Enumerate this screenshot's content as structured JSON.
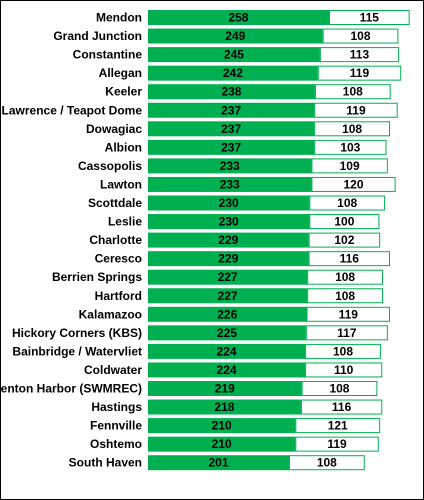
{
  "chart_data": {
    "type": "bar",
    "orientation": "horizontal",
    "stacked": true,
    "categories": [
      "Mendon",
      "Grand Junction",
      "Constantine",
      "Allegan",
      "Keeler",
      "Lawrence / Teapot Dome",
      "Dowagiac",
      "Albion",
      "Cassopolis",
      "Lawton",
      "Scottdale",
      "Leslie",
      "Charlotte",
      "Ceresco",
      "Berrien Springs",
      "Hartford",
      "Kalamazoo",
      "Hickory Corners (KBS)",
      "Bainbridge / Watervliet",
      "Coldwater",
      "Benton Harbor (SWMREC)",
      "Hastings",
      "Fennville",
      "Oshtemo",
      "South Haven"
    ],
    "series": [
      {
        "color": "#00b050",
        "values": [
          258,
          249,
          245,
          242,
          238,
          237,
          237,
          237,
          233,
          233,
          230,
          230,
          229,
          229,
          227,
          227,
          226,
          225,
          224,
          224,
          219,
          218,
          210,
          210,
          201
        ]
      },
      {
        "color": "#ffffff",
        "border": "#00b050",
        "values": [
          115,
          108,
          113,
          119,
          108,
          119,
          108,
          103,
          109,
          120,
          108,
          100,
          102,
          116,
          108,
          108,
          119,
          117,
          108,
          110,
          108,
          116,
          121,
          119,
          108
        ]
      }
    ],
    "data_labels": true,
    "legend": "none",
    "grid": false
  }
}
